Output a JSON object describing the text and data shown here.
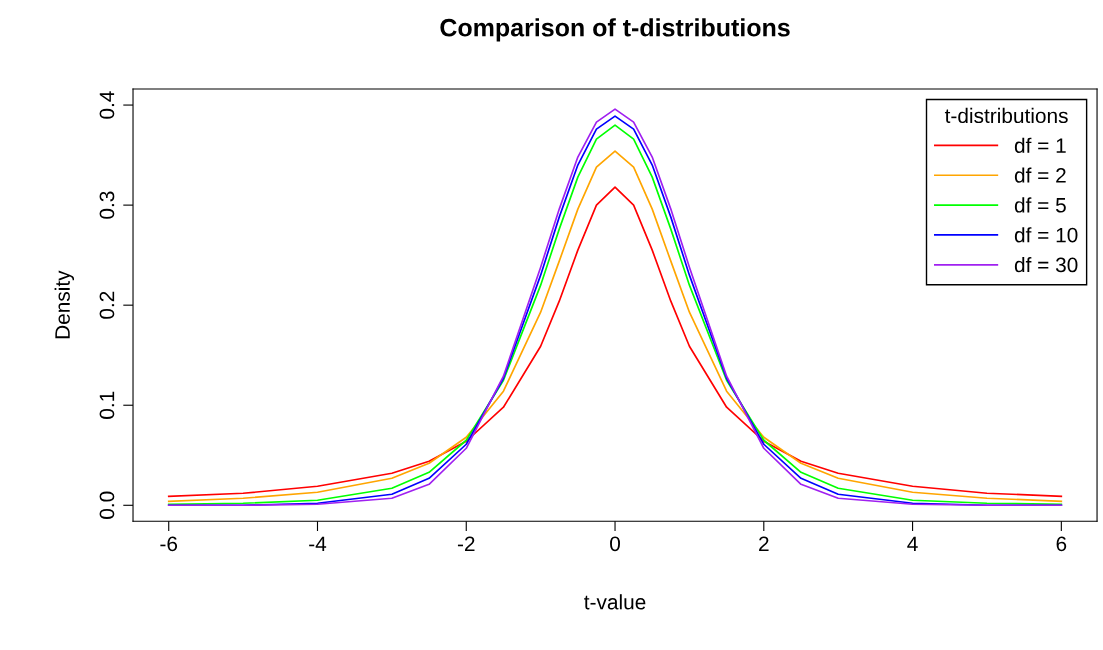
{
  "chart_data": {
    "type": "line",
    "title": "Comparison of t-distributions",
    "xlabel": "t-value",
    "ylabel": "Density",
    "legend_title": "t-distributions",
    "legend": "top right",
    "grid": false,
    "marker": "none",
    "line_style": "solid",
    "x": [
      -6,
      -5,
      -4,
      -3,
      -2.5,
      -2,
      -1.5,
      -1,
      -0.75,
      -0.5,
      -0.25,
      0,
      0.25,
      0.5,
      0.75,
      1,
      1.5,
      2,
      2.5,
      3,
      4,
      5,
      6
    ],
    "series": [
      {
        "name": "df = 1",
        "color": "#ff0000",
        "values": [
          0.009,
          0.012,
          0.019,
          0.032,
          0.044,
          0.064,
          0.098,
          0.159,
          0.204,
          0.255,
          0.3,
          0.318,
          0.3,
          0.255,
          0.204,
          0.159,
          0.098,
          0.064,
          0.044,
          0.032,
          0.019,
          0.012,
          0.009
        ]
      },
      {
        "name": "df = 2",
        "color": "#ffa500",
        "values": [
          0.004,
          0.007,
          0.013,
          0.027,
          0.042,
          0.068,
          0.114,
          0.193,
          0.244,
          0.296,
          0.338,
          0.354,
          0.338,
          0.296,
          0.244,
          0.193,
          0.114,
          0.068,
          0.042,
          0.027,
          0.013,
          0.007,
          0.004
        ]
      },
      {
        "name": "df = 5",
        "color": "#00ff00",
        "values": [
          0.001,
          0.002,
          0.005,
          0.017,
          0.033,
          0.065,
          0.125,
          0.22,
          0.276,
          0.328,
          0.366,
          0.38,
          0.366,
          0.328,
          0.276,
          0.22,
          0.125,
          0.065,
          0.033,
          0.017,
          0.005,
          0.002,
          0.001
        ]
      },
      {
        "name": "df = 10",
        "color": "#0000ff",
        "values": [
          0.0,
          0.0,
          0.002,
          0.011,
          0.027,
          0.061,
          0.127,
          0.23,
          0.288,
          0.34,
          0.376,
          0.389,
          0.376,
          0.34,
          0.288,
          0.23,
          0.127,
          0.061,
          0.027,
          0.011,
          0.002,
          0.0,
          0.0
        ]
      },
      {
        "name": "df = 30",
        "color": "#a020f0",
        "values": [
          0.0,
          0.0,
          0.001,
          0.007,
          0.021,
          0.057,
          0.129,
          0.238,
          0.296,
          0.348,
          0.383,
          0.396,
          0.383,
          0.348,
          0.296,
          0.238,
          0.129,
          0.057,
          0.021,
          0.007,
          0.001,
          0.0,
          0.0
        ]
      }
    ],
    "xlim": [
      -6.48,
      6.48
    ],
    "xticks": [
      -6,
      -4,
      -2,
      0,
      2,
      4,
      6
    ],
    "ylim": [
      -0.016,
      0.416
    ],
    "yticks": [
      {
        "value": 0,
        "label": "0.0"
      },
      0.1,
      0.2,
      0.3,
      0.4
    ]
  }
}
